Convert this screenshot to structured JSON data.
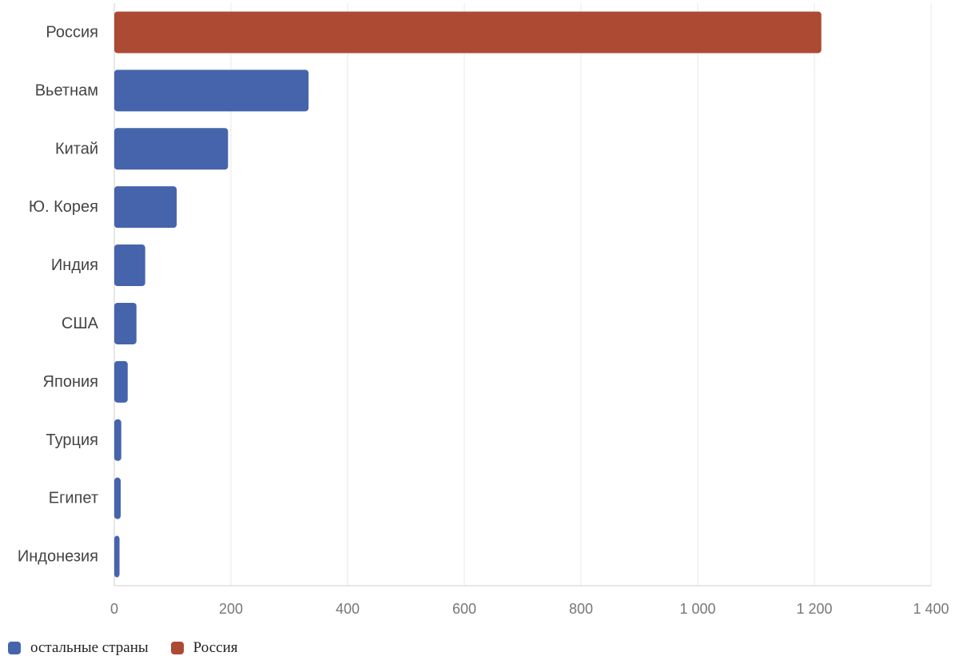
{
  "chart_data": {
    "type": "bar",
    "orientation": "horizontal",
    "categories": [
      "Россия",
      "Вьетнам",
      "Китай",
      "Ю. Корея",
      "Индия",
      "США",
      "Япония",
      "Турция",
      "Египет",
      "Индонезия"
    ],
    "values": [
      1212,
      333,
      195,
      107,
      53,
      38,
      23,
      12,
      11,
      9
    ],
    "bar_series": [
      "Россия",
      "остальные страны",
      "остальные страны",
      "остальные страны",
      "остальные страны",
      "остальные страны",
      "остальные страны",
      "остальные страны",
      "остальные страны",
      "остальные страны"
    ],
    "series": [
      {
        "name": "остальные страны",
        "color": "#4564ab"
      },
      {
        "name": "Россия",
        "color": "#ad4a33"
      }
    ],
    "xlim": [
      0,
      1400
    ],
    "xticks": [
      0,
      200,
      400,
      600,
      800,
      1000,
      1200,
      1400
    ],
    "xtick_labels": [
      "0",
      "200",
      "400",
      "600",
      "800",
      "1 000",
      "1 200",
      "1 400"
    ],
    "grid": true,
    "legend_position": "bottom-left"
  }
}
